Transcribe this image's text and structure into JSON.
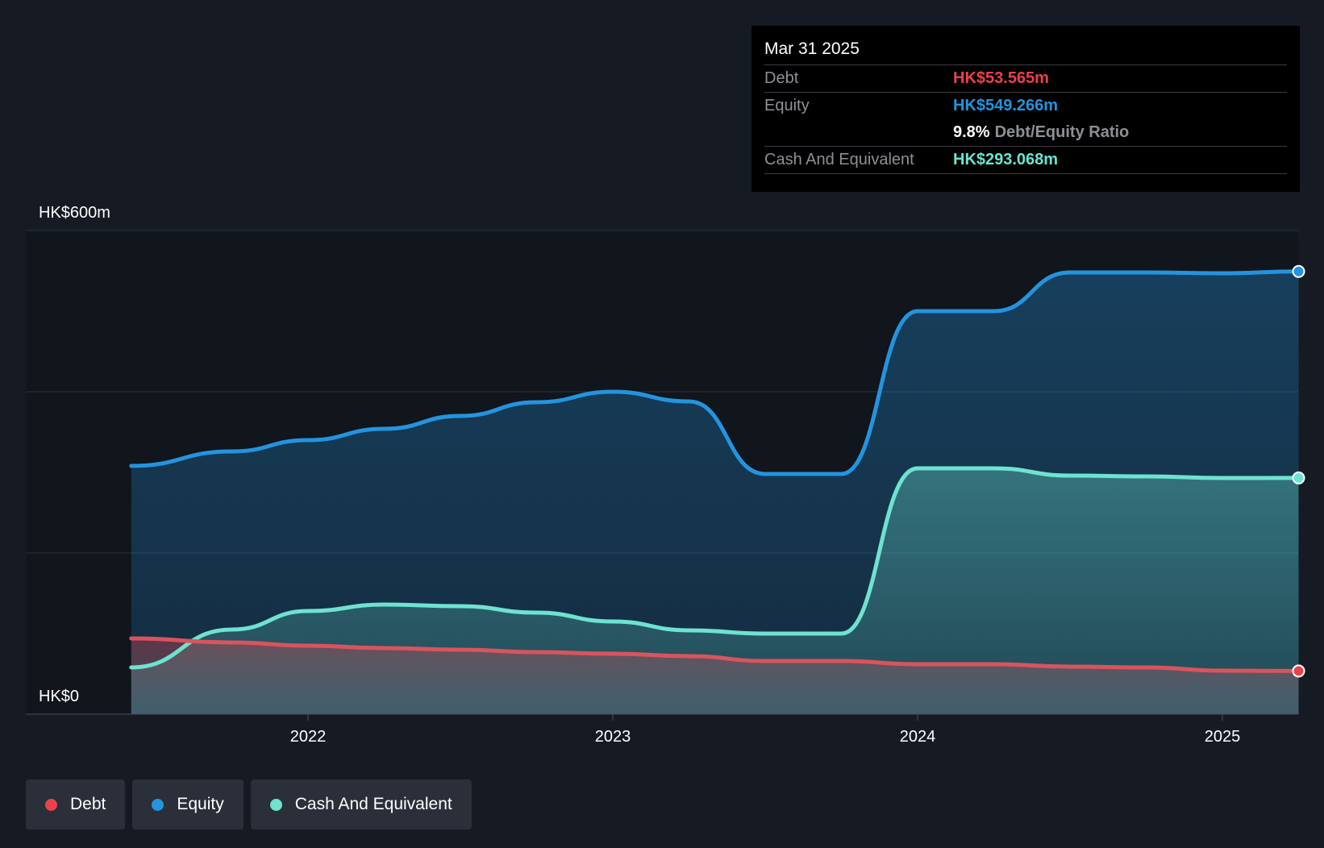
{
  "colors": {
    "debt": "#e8434a",
    "equity": "#2394df",
    "cash": "#6de3d0",
    "background": "#151a23"
  },
  "tooltip": {
    "date": "Mar 31 2025",
    "rows": [
      {
        "key": "Debt",
        "value": "HK$53.565m",
        "color": "#e8434a"
      },
      {
        "key": "Equity",
        "value": "HK$549.266m",
        "color": "#2394df"
      },
      {
        "key": "",
        "ratio_value": "9.8%",
        "ratio_label": "Debt/Equity Ratio"
      },
      {
        "key": "Cash And Equivalent",
        "value": "HK$293.068m",
        "color": "#6de3d0"
      }
    ]
  },
  "legend": [
    {
      "label": "Debt",
      "color": "#e8434a",
      "icon": "dot-icon"
    },
    {
      "label": "Equity",
      "color": "#2394df",
      "icon": "dot-icon"
    },
    {
      "label": "Cash And Equivalent",
      "color": "#6de3d0",
      "icon": "dot-icon"
    }
  ],
  "chart_data": {
    "type": "area",
    "y_top_label": "HK$600m",
    "y_bottom_label": "HK$0",
    "ylim": [
      0,
      600
    ],
    "xlim": [
      2021.25,
      2025.25
    ],
    "x_ticks": [
      {
        "value": 2022,
        "label": "2022"
      },
      {
        "value": 2023,
        "label": "2023"
      },
      {
        "value": 2024,
        "label": "2024"
      },
      {
        "value": 2025,
        "label": "2025"
      }
    ],
    "grid_values": [
      200,
      400,
      600
    ],
    "highlight_after": 2021.25,
    "series": [
      {
        "name": "Equity",
        "key": "equity",
        "x": [
          2021.42,
          2021.75,
          2022.0,
          2022.25,
          2022.5,
          2022.75,
          2023.0,
          2023.25,
          2023.5,
          2023.75,
          2024.0,
          2024.25,
          2024.5,
          2024.75,
          2025.0,
          2025.25
        ],
        "values": [
          308,
          326,
          340,
          354,
          370,
          387,
          400,
          388,
          298,
          298,
          500,
          500,
          548,
          548,
          547,
          549.266
        ]
      },
      {
        "name": "Cash And Equivalent",
        "key": "cash",
        "x": [
          2021.42,
          2021.75,
          2022.0,
          2022.25,
          2022.5,
          2022.75,
          2023.0,
          2023.25,
          2023.5,
          2023.75,
          2024.0,
          2024.25,
          2024.5,
          2024.75,
          2025.0,
          2025.25
        ],
        "values": [
          58,
          105,
          128,
          136,
          134,
          126,
          115,
          104,
          100,
          100,
          305,
          305,
          296,
          295,
          293,
          293.068
        ]
      },
      {
        "name": "Debt",
        "key": "debt",
        "x": [
          2021.42,
          2021.75,
          2022.0,
          2022.25,
          2022.5,
          2022.75,
          2023.0,
          2023.25,
          2023.5,
          2023.75,
          2024.0,
          2024.25,
          2024.5,
          2024.75,
          2025.0,
          2025.25
        ],
        "values": [
          94,
          89,
          85,
          82,
          80,
          77,
          75,
          72,
          66,
          66,
          62,
          62,
          59,
          58,
          54,
          53.565
        ]
      }
    ]
  }
}
